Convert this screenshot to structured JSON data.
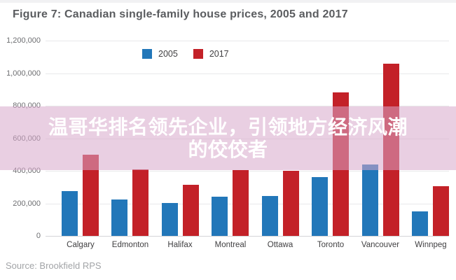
{
  "title": "Figure 7: Canadian single-family house prices, 2005 and 2017",
  "source": "Source: Brookfield RPS",
  "overlay": {
    "line1": "温哥华排名领先企业，引领地方经济风潮",
    "line2": "的佼佼者"
  },
  "legend": [
    {
      "label": "2005",
      "color": "#2277b9"
    },
    {
      "label": "2017",
      "color": "#c32128"
    }
  ],
  "colors": {
    "blue_2005": "#2277b9",
    "red_2017": "#c32128",
    "overlay_pink": "rgba(215,168,202,0.55)",
    "grid": "#e8e9ea",
    "title_text": "#5a5c5f",
    "axis_text": "#6d6e71"
  },
  "chart_data": {
    "type": "bar",
    "title": "Figure 7: Canadian single-family house prices, 2005 and 2017",
    "categories": [
      "Calgary",
      "Edmonton",
      "Halifax",
      "Montreal",
      "Ottawa",
      "Toronto",
      "Vancouver",
      "Winnpeg"
    ],
    "series": [
      {
        "name": "2005",
        "color": "#2277b9",
        "values": [
          275000,
          225000,
          200000,
          240000,
          245000,
          360000,
          440000,
          150000
        ]
      },
      {
        "name": "2017",
        "color": "#c32128",
        "values": [
          500000,
          410000,
          315000,
          405000,
          400000,
          880000,
          1060000,
          305000
        ]
      }
    ],
    "xlabel": "",
    "ylabel": "",
    "ylim": [
      0,
      1200000
    ],
    "yticks": [
      0,
      200000,
      400000,
      600000,
      800000,
      1000000,
      1200000
    ],
    "ytick_labels": [
      "0",
      "200,000",
      "400,000",
      "600,000",
      "800,000",
      "1,000,000",
      "1,200,000"
    ],
    "grid": true,
    "legend_position": "top"
  }
}
